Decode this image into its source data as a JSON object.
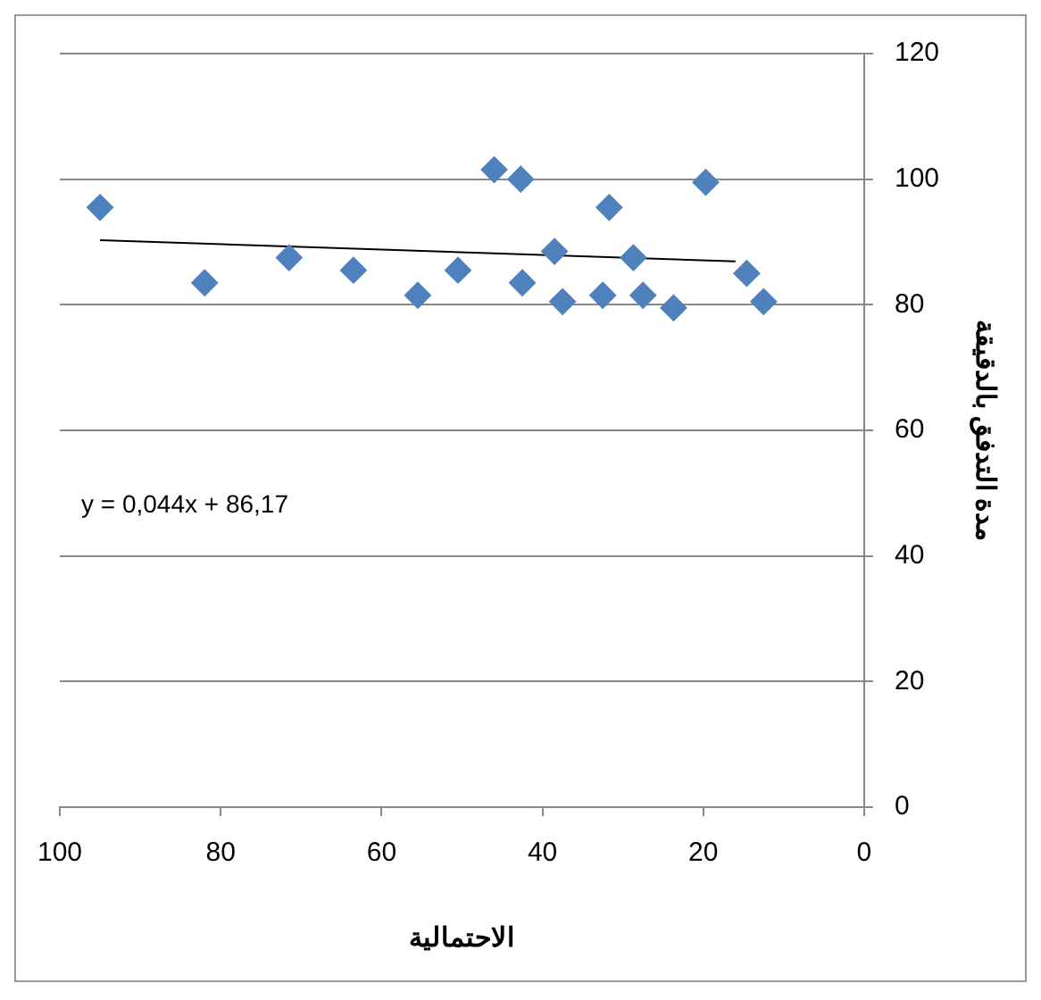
{
  "chart_data": {
    "type": "scatter",
    "xlabel": "الاحتمالية",
    "ylabel": "مدة التدفق بالدقيقة",
    "xlim": [
      100,
      0
    ],
    "xticks": [
      100,
      80,
      60,
      40,
      20,
      0
    ],
    "ylim": [
      0,
      120
    ],
    "yticks": [
      0,
      20,
      40,
      60,
      80,
      100,
      120
    ],
    "grid": "y",
    "legend": false,
    "marker": "diamond",
    "annotations": [
      "y = 0,044x + 86,17"
    ],
    "series": [
      {
        "color": "#4f81bd",
        "x": [
          95,
          82,
          71.5,
          63.5,
          55.5,
          50.5,
          46,
          42.7,
          42.5,
          38.5,
          37.5,
          32.5,
          31.7,
          28.7,
          27.5,
          23.7,
          19.7,
          14.6,
          12.5
        ],
        "values": [
          95.5,
          83.5,
          87.5,
          85.5,
          81.5,
          85.5,
          101.5,
          100,
          83.5,
          88.5,
          80.5,
          81.5,
          95.5,
          87.5,
          81.5,
          79.5,
          99.5,
          85,
          80.5
        ]
      },
      {
        "type": "line",
        "color": "#000000",
        "marker": "none",
        "x": [
          95,
          16
        ],
        "values": [
          90.3,
          86.9
        ]
      }
    ]
  }
}
